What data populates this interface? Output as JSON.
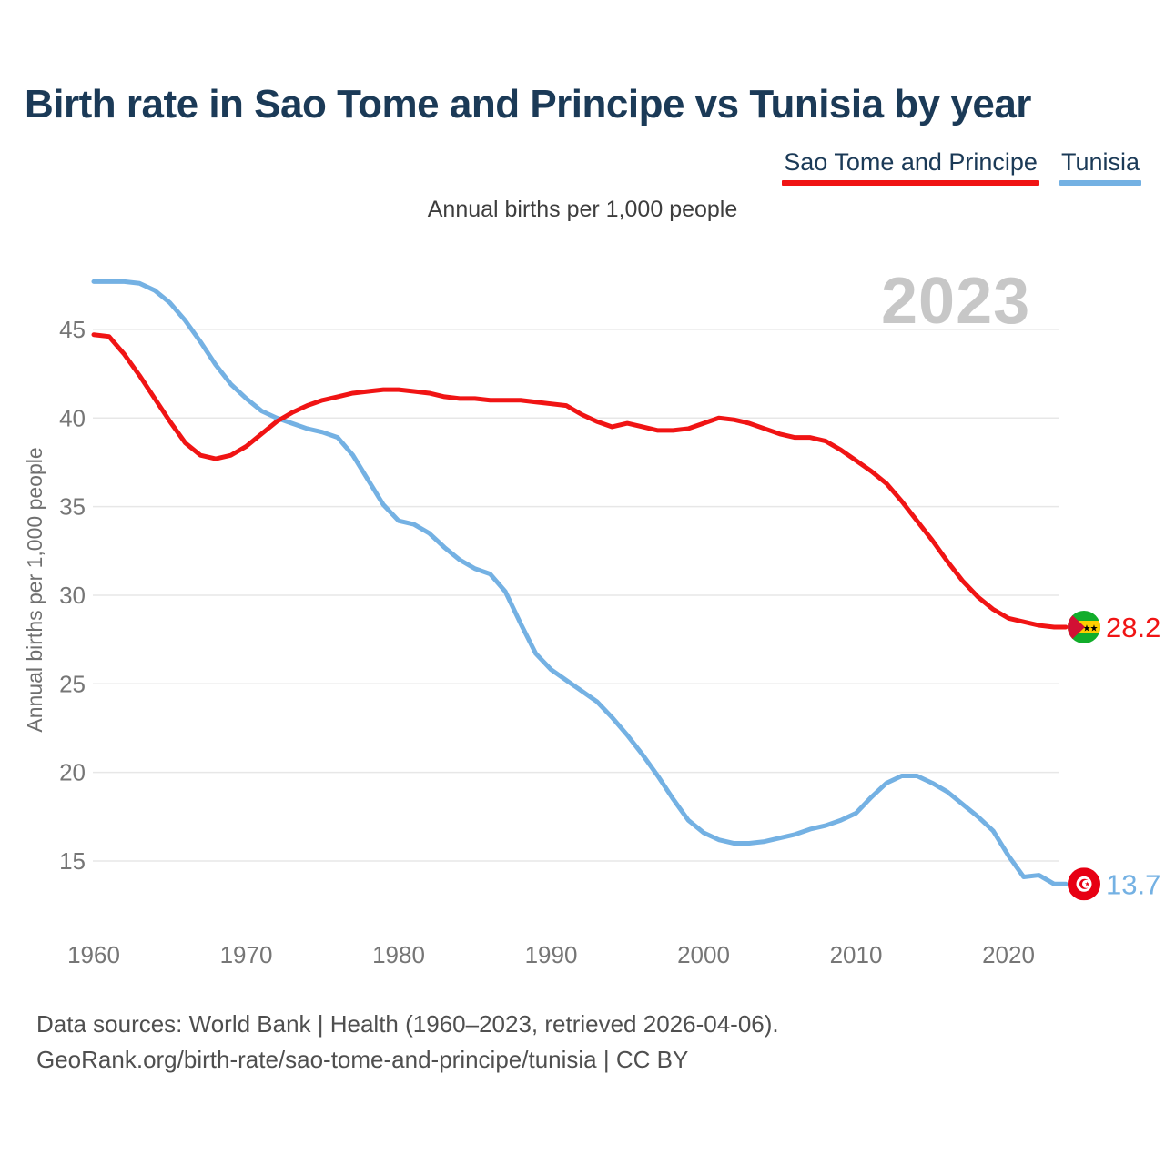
{
  "title": "Birth rate in Sao Tome and Principe vs Tunisia by year",
  "subtitle": "Annual births per 1,000 people",
  "watermark_year": "2023",
  "legend": [
    {
      "label": "Sao Tome and Principe",
      "color": "#f01414"
    },
    {
      "label": "Tunisia",
      "color": "#74b1e3"
    }
  ],
  "footer": {
    "line1": "Data sources: World Bank | Health (1960–2023, retrieved 2026-04-06).",
    "line2": "GeoRank.org/birth-rate/sao-tome-and-principe/tunisia | CC BY"
  },
  "chart_data": {
    "type": "line",
    "title": "Birth rate in Sao Tome and Principe vs Tunisia by year",
    "subtitle": "Annual births per 1,000 people",
    "xlabel": "",
    "ylabel": "Annual births per 1,000 people",
    "ylim": [
      12.5,
      48.5
    ],
    "grid": "horizontal",
    "legend_position": "top-right",
    "yticks": [
      15,
      20,
      25,
      30,
      35,
      40,
      45
    ],
    "xticks": [
      1960,
      1970,
      1980,
      1990,
      2000,
      2010,
      2020
    ],
    "x": [
      1960,
      1961,
      1962,
      1963,
      1964,
      1965,
      1966,
      1967,
      1968,
      1969,
      1970,
      1971,
      1972,
      1973,
      1974,
      1975,
      1976,
      1977,
      1978,
      1979,
      1980,
      1981,
      1982,
      1983,
      1984,
      1985,
      1986,
      1987,
      1988,
      1989,
      1990,
      1991,
      1992,
      1993,
      1994,
      1995,
      1996,
      1997,
      1998,
      1999,
      2000,
      2001,
      2002,
      2003,
      2004,
      2005,
      2006,
      2007,
      2008,
      2009,
      2010,
      2011,
      2012,
      2013,
      2014,
      2015,
      2016,
      2017,
      2018,
      2019,
      2020,
      2021,
      2022,
      2023
    ],
    "series": [
      {
        "name": "Sao Tome and Principe",
        "color": "#f01414",
        "end_label": "28.2",
        "flag": "sao-tome-and-principe",
        "values": [
          44.7,
          44.6,
          43.6,
          42.4,
          41.1,
          39.8,
          38.6,
          37.9,
          37.7,
          37.9,
          38.4,
          39.1,
          39.8,
          40.3,
          40.7,
          41.0,
          41.2,
          41.4,
          41.5,
          41.6,
          41.6,
          41.5,
          41.4,
          41.2,
          41.1,
          41.1,
          41.0,
          41.0,
          41.0,
          40.9,
          40.8,
          40.7,
          40.2,
          39.8,
          39.5,
          39.7,
          39.5,
          39.3,
          39.3,
          39.4,
          39.7,
          40.0,
          39.9,
          39.7,
          39.4,
          39.1,
          38.9,
          38.9,
          38.7,
          38.2,
          37.6,
          37.0,
          36.3,
          35.3,
          34.2,
          33.1,
          31.9,
          30.8,
          29.9,
          29.2,
          28.7,
          28.5,
          28.3,
          28.2
        ]
      },
      {
        "name": "Tunisia",
        "color": "#74b1e3",
        "end_label": "13.7",
        "flag": "tunisia",
        "values": [
          47.7,
          47.7,
          47.7,
          47.6,
          47.2,
          46.5,
          45.5,
          44.3,
          43.0,
          41.9,
          41.1,
          40.4,
          40.0,
          39.7,
          39.4,
          39.2,
          38.9,
          37.9,
          36.5,
          35.1,
          34.2,
          34.0,
          33.5,
          32.7,
          32.0,
          31.5,
          31.2,
          30.2,
          28.4,
          26.7,
          25.8,
          25.2,
          24.6,
          24.0,
          23.1,
          22.1,
          21.0,
          19.8,
          18.5,
          17.3,
          16.6,
          16.2,
          16.0,
          16.0,
          16.1,
          16.3,
          16.5,
          16.8,
          17.0,
          17.3,
          17.7,
          18.6,
          19.4,
          19.8,
          19.8,
          19.4,
          18.9,
          18.2,
          17.5,
          16.7,
          15.3,
          14.1,
          14.2,
          13.7
        ]
      }
    ]
  },
  "colors": {
    "title": "#1b3a57",
    "subtitle_text": "#3d3d3d",
    "tick_text": "#767676",
    "axis_title_text": "#6f6f6f",
    "gridline": "#e7e7e7",
    "watermark": "#c7c7c7",
    "footer_text": "#4f4f4f",
    "sao_tome_line": "#f01414",
    "tunisia_line": "#74b1e3"
  }
}
